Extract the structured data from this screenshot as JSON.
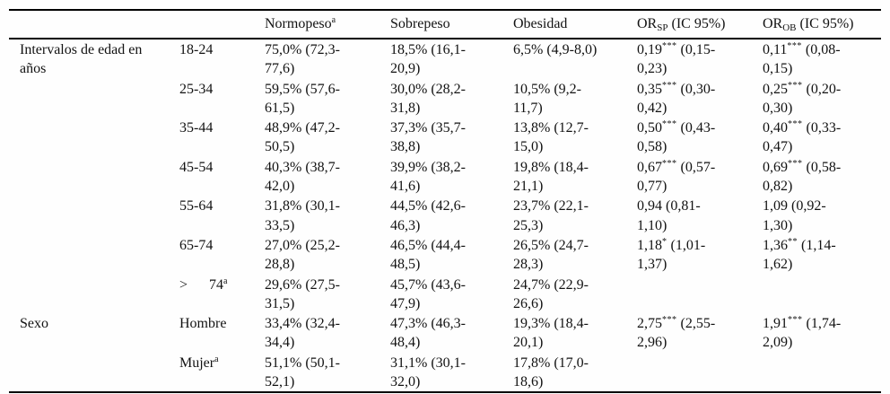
{
  "table": {
    "description": "Prevalencia de categorías de peso y odds ratios por intervalos de edad y sexo",
    "column_names": [
      "row-group",
      "row-label",
      "normopeso",
      "sobrepeso",
      "obesidad",
      "or-sp",
      "or-ob"
    ],
    "header": [
      null,
      null,
      {
        "main": "Normopeso",
        "sup": "a"
      },
      {
        "main": "Sobrepeso"
      },
      {
        "main": "Obesidad"
      },
      {
        "main": "OR",
        "sub": "SP",
        "rest": " (IC 95%)"
      },
      {
        "main": "OR",
        "sub": "OB",
        "rest": " (IC 95%)"
      }
    ],
    "rows": [
      {
        "group": {
          "main": "Intervalos de edad en\naños"
        },
        "label": {
          "main": "18-24"
        },
        "cells": [
          {
            "main": "75,0% (72,3-\n77,6)"
          },
          {
            "main": "18,5% (16,1-\n20,9)"
          },
          {
            "main": "6,5% (4,9-8,0)"
          },
          {
            "main": "0,19",
            "sup": "***",
            "rest": " (0,15-\n0,23)"
          },
          {
            "main": "0,11",
            "sup": "***",
            "rest": " (0,08-\n0,15)"
          }
        ]
      },
      {
        "group": null,
        "label": {
          "main": "25-34"
        },
        "cells": [
          {
            "main": "59,5% (57,6-\n61,5)"
          },
          {
            "main": "30,0% (28,2-\n31,8)"
          },
          {
            "main": "10,5% (9,2-\n11,7)"
          },
          {
            "main": "0,35",
            "sup": "***",
            "rest": " (0,30-\n0,42)"
          },
          {
            "main": "0,25",
            "sup": "***",
            "rest": " (0,20-\n0,30)"
          }
        ]
      },
      {
        "group": null,
        "label": {
          "main": "35-44"
        },
        "cells": [
          {
            "main": "48,9% (47,2-\n50,5)"
          },
          {
            "main": "37,3% (35,7-\n38,8)"
          },
          {
            "main": "13,8% (12,7-\n15,0)"
          },
          {
            "main": "0,50",
            "sup": "***",
            "rest": " (0,43-\n0,58)"
          },
          {
            "main": "0,40",
            "sup": "***",
            "rest": " (0,33-\n0,47)"
          }
        ]
      },
      {
        "group": null,
        "label": {
          "main": "45-54"
        },
        "cells": [
          {
            "main": "40,3% (38,7-\n42,0)"
          },
          {
            "main": "39,9% (38,2-\n41,6)"
          },
          {
            "main": "19,8% (18,4-\n21,1)"
          },
          {
            "main": "0,67",
            "sup": "***",
            "rest": " (0,57-\n0,77)"
          },
          {
            "main": "0,69",
            "sup": "***",
            "rest": " (0,58-\n0,82)"
          }
        ]
      },
      {
        "group": null,
        "label": {
          "main": "55-64"
        },
        "cells": [
          {
            "main": "31,8% (30,1-\n33,5)"
          },
          {
            "main": "44,5% (42,6-\n46,3)"
          },
          {
            "main": "23,7% (22,1-\n25,3)"
          },
          {
            "main": "0,94 (0,81-\n1,10)"
          },
          {
            "main": "1,09 (0,92-\n1,30)"
          }
        ]
      },
      {
        "group": null,
        "label": {
          "main": "65-74"
        },
        "cells": [
          {
            "main": "27,0% (25,2-\n28,8)"
          },
          {
            "main": "46,5% (44,4-\n48,5)"
          },
          {
            "main": "26,5% (24,7-\n28,3)"
          },
          {
            "main": "1,18",
            "sup": "*",
            "rest": " (1,01-\n1,37)"
          },
          {
            "main": "1,36",
            "sup": "**",
            "rest": " (1,14-\n1,62)"
          }
        ]
      },
      {
        "group": null,
        "label": {
          "main": ">      74",
          "sup": "a"
        },
        "cells": [
          {
            "main": "29,6% (27,5-\n31,5)"
          },
          {
            "main": "45,7% (43,6-\n47,9)"
          },
          {
            "main": "24,7% (22,9-\n26,6)"
          },
          null,
          null
        ]
      },
      {
        "group": {
          "main": "Sexo"
        },
        "label": {
          "main": "Hombre"
        },
        "cells": [
          {
            "main": "33,4% (32,4-\n34,4)"
          },
          {
            "main": "47,3% (46,3-\n48,4)"
          },
          {
            "main": "19,3% (18,4-\n20,1)"
          },
          {
            "main": "2,75",
            "sup": "***",
            "rest": " (2,55-\n2,96)"
          },
          {
            "main": "1,91",
            "sup": "***",
            "rest": " (1,74-\n2,09)"
          }
        ]
      },
      {
        "group": null,
        "label": {
          "main": "Mujer",
          "sup": "a"
        },
        "cells": [
          {
            "main": "51,1% (50,1-\n52,1)"
          },
          {
            "main": "31,1% (30,1-\n32,0)"
          },
          {
            "main": "17,8% (17,0-\n18,6)"
          },
          null,
          null
        ]
      }
    ]
  }
}
